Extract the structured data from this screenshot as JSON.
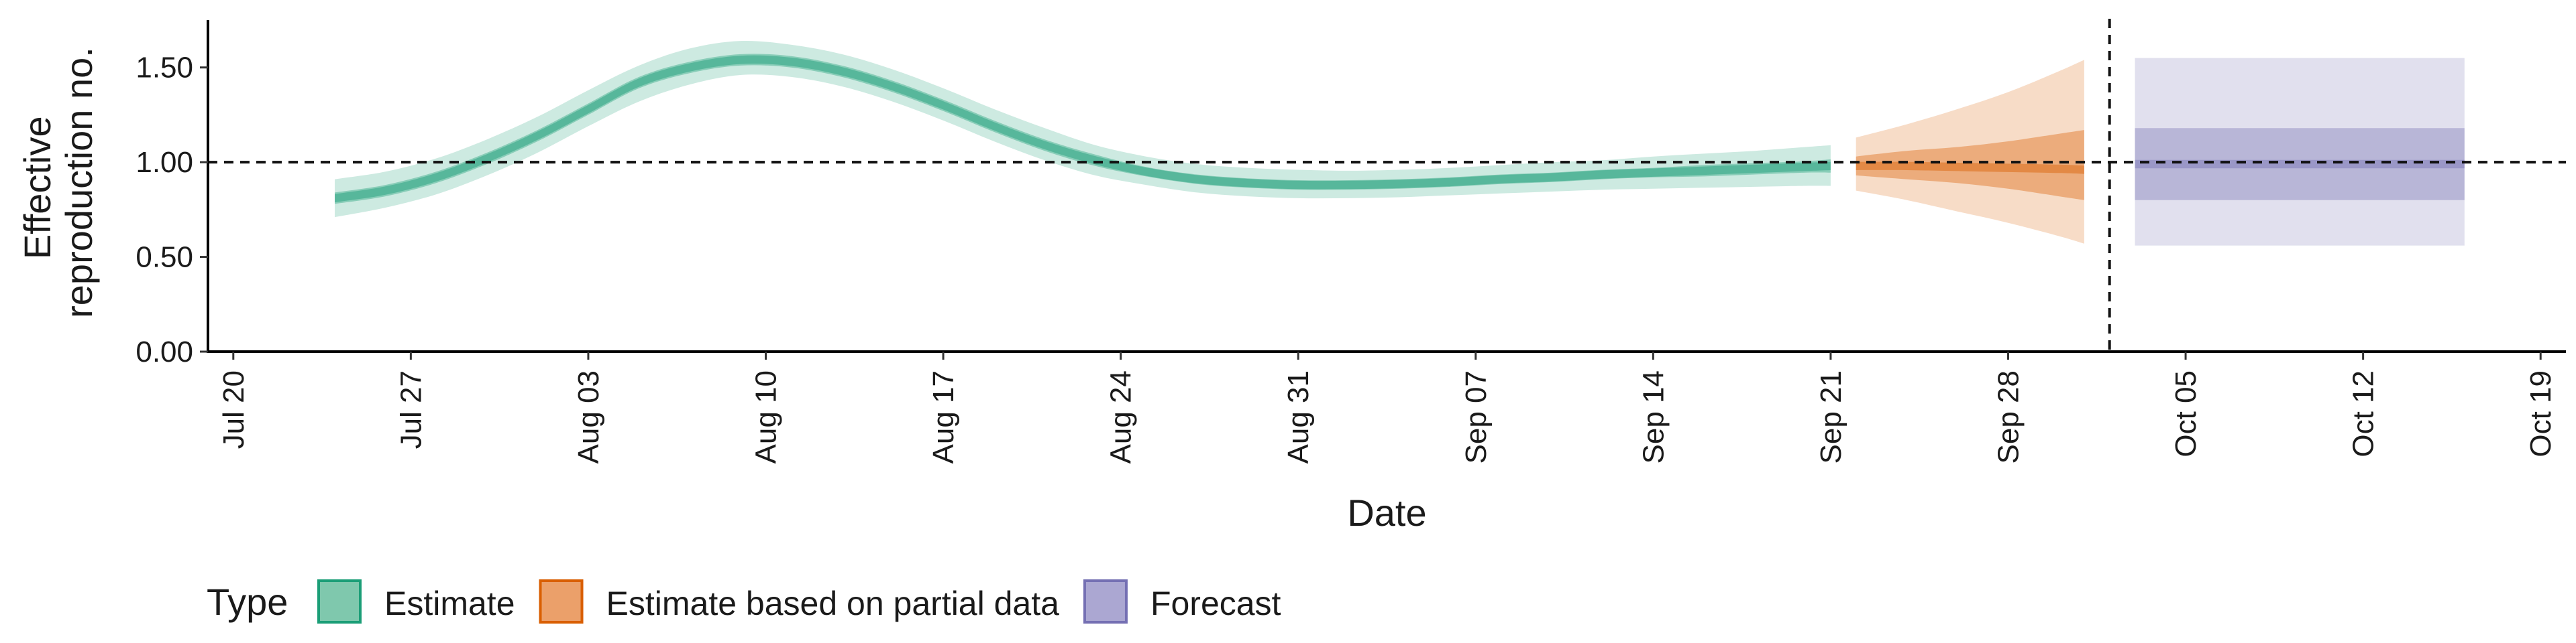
{
  "chart_data": {
    "type": "area",
    "xlabel": "Date",
    "ylabel_lines": [
      "Effective",
      "reproduction no."
    ],
    "ylim": [
      0,
      1.75
    ],
    "y_ticks": [
      0,
      0.5,
      1.0,
      1.5
    ],
    "y_tick_labels": [
      "0.00",
      "0.50",
      "1.00",
      "1.50"
    ],
    "xlim": [
      "2020-07-19",
      "2020-10-20"
    ],
    "x_ticks": [
      "2020-07-20",
      "2020-07-27",
      "2020-08-03",
      "2020-08-10",
      "2020-08-17",
      "2020-08-24",
      "2020-08-31",
      "2020-09-07",
      "2020-09-14",
      "2020-09-21",
      "2020-09-28",
      "2020-10-05",
      "2020-10-12",
      "2020-10-19"
    ],
    "x_tick_labels": [
      "Jul 20",
      "Jul 27",
      "Aug 03",
      "Aug 10",
      "Aug 17",
      "Aug 24",
      "Aug 31",
      "Sep 07",
      "Sep 14",
      "Sep 21",
      "Sep 28",
      "Oct 05",
      "Oct 12",
      "Oct 19"
    ],
    "reference_hline": 1.0,
    "reference_vline": "2020-10-02",
    "legend": {
      "title": "Type",
      "position": "bottom-left",
      "items": [
        {
          "label": "Estimate",
          "fill": "#7fc8ad",
          "stroke": "#1b9e77"
        },
        {
          "label": "Estimate based on partial data",
          "fill": "#eba06a",
          "stroke": "#d95f02"
        },
        {
          "label": "Forecast",
          "fill": "#aba7d2",
          "stroke": "#7570b3"
        }
      ]
    },
    "series": [
      {
        "name": "Estimate",
        "color": "#1b9e77",
        "x": [
          "2020-07-24",
          "2020-07-26",
          "2020-07-28",
          "2020-07-30",
          "2020-08-01",
          "2020-08-03",
          "2020-08-05",
          "2020-08-07",
          "2020-08-09",
          "2020-08-11",
          "2020-08-13",
          "2020-08-15",
          "2020-08-17",
          "2020-08-19",
          "2020-08-21",
          "2020-08-23",
          "2020-08-25",
          "2020-08-27",
          "2020-08-29",
          "2020-08-31",
          "2020-09-02",
          "2020-09-04",
          "2020-09-06",
          "2020-09-08",
          "2020-09-10",
          "2020-09-12",
          "2020-09-14",
          "2020-09-16",
          "2020-09-18",
          "2020-09-20",
          "2020-09-21"
        ],
        "median": [
          0.81,
          0.85,
          0.92,
          1.02,
          1.14,
          1.28,
          1.42,
          1.5,
          1.54,
          1.53,
          1.48,
          1.4,
          1.3,
          1.19,
          1.09,
          1.01,
          0.95,
          0.91,
          0.89,
          0.88,
          0.88,
          0.885,
          0.895,
          0.91,
          0.92,
          0.935,
          0.945,
          0.955,
          0.965,
          0.975,
          0.98
        ],
        "lower_90": [
          0.71,
          0.76,
          0.83,
          0.93,
          1.05,
          1.19,
          1.32,
          1.41,
          1.46,
          1.45,
          1.4,
          1.32,
          1.22,
          1.11,
          1.01,
          0.93,
          0.88,
          0.84,
          0.82,
          0.81,
          0.81,
          0.815,
          0.825,
          0.835,
          0.845,
          0.855,
          0.86,
          0.865,
          0.87,
          0.875,
          0.875
        ],
        "upper_90": [
          0.91,
          0.95,
          1.02,
          1.12,
          1.24,
          1.38,
          1.51,
          1.6,
          1.64,
          1.62,
          1.57,
          1.49,
          1.39,
          1.28,
          1.18,
          1.09,
          1.03,
          0.99,
          0.97,
          0.96,
          0.955,
          0.96,
          0.97,
          0.985,
          1.0,
          1.01,
          1.03,
          1.045,
          1.06,
          1.08,
          1.09
        ],
        "lower_50": [
          0.78,
          0.82,
          0.89,
          0.99,
          1.11,
          1.25,
          1.39,
          1.47,
          1.51,
          1.5,
          1.45,
          1.37,
          1.27,
          1.16,
          1.06,
          0.98,
          0.925,
          0.885,
          0.865,
          0.855,
          0.855,
          0.86,
          0.87,
          0.885,
          0.895,
          0.91,
          0.92,
          0.925,
          0.935,
          0.945,
          0.945
        ],
        "upper_50": [
          0.84,
          0.88,
          0.95,
          1.05,
          1.17,
          1.31,
          1.45,
          1.53,
          1.57,
          1.56,
          1.51,
          1.43,
          1.33,
          1.22,
          1.12,
          1.04,
          0.975,
          0.935,
          0.915,
          0.905,
          0.905,
          0.91,
          0.92,
          0.935,
          0.945,
          0.96,
          0.97,
          0.985,
          0.995,
          1.005,
          1.015
        ]
      },
      {
        "name": "Estimate based on partial data",
        "color": "#d95f02",
        "x": [
          "2020-09-22",
          "2020-09-24",
          "2020-09-26",
          "2020-09-28",
          "2020-09-30",
          "2020-10-01"
        ],
        "median": [
          0.98,
          0.98,
          0.975,
          0.97,
          0.965,
          0.96
        ],
        "lower_90": [
          0.85,
          0.8,
          0.74,
          0.68,
          0.61,
          0.57
        ],
        "upper_90": [
          1.13,
          1.2,
          1.28,
          1.37,
          1.48,
          1.54
        ],
        "lower_50": [
          0.93,
          0.91,
          0.89,
          0.86,
          0.82,
          0.8
        ],
        "upper_50": [
          1.03,
          1.06,
          1.08,
          1.11,
          1.15,
          1.17
        ]
      },
      {
        "name": "Forecast",
        "color": "#7570b3",
        "x": [
          "2020-10-03",
          "2020-10-16"
        ],
        "median": [
          0.99,
          0.99
        ],
        "lower_90": [
          0.56,
          0.56
        ],
        "upper_90": [
          1.55,
          1.55
        ],
        "lower_50": [
          0.8,
          0.8
        ],
        "upper_50": [
          1.18,
          1.18
        ]
      }
    ]
  }
}
